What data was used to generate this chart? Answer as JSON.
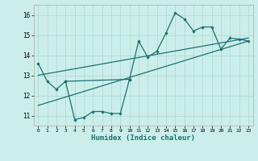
{
  "xlabel": "Humidex (Indice chaleur)",
  "background_color": "#cceeea",
  "grid_color": "#aad8d0",
  "line_color": "#1a7070",
  "xlim": [
    -0.5,
    23.5
  ],
  "ylim": [
    10.5,
    16.5
  ],
  "yticks": [
    11,
    12,
    13,
    14,
    15,
    16
  ],
  "xticks": [
    0,
    1,
    2,
    3,
    4,
    5,
    6,
    7,
    8,
    9,
    10,
    11,
    12,
    13,
    14,
    15,
    16,
    17,
    18,
    19,
    20,
    21,
    22,
    23
  ],
  "series1_x": [
    0,
    1,
    2,
    3,
    10,
    11,
    12,
    13,
    14,
    15,
    16,
    17,
    18,
    19,
    20,
    21,
    22,
    23
  ],
  "series1_y": [
    13.6,
    12.7,
    12.3,
    12.7,
    12.8,
    14.7,
    13.9,
    14.2,
    15.1,
    16.1,
    15.8,
    15.2,
    15.4,
    15.4,
    14.3,
    14.85,
    14.8,
    14.7
  ],
  "series2_x": [
    3,
    4,
    5,
    6,
    7,
    8,
    9,
    10
  ],
  "series2_y": [
    12.7,
    10.8,
    10.9,
    11.2,
    11.2,
    11.1,
    11.1,
    12.8
  ],
  "trendline_x": [
    0,
    23
  ],
  "trendline_y": [
    11.5,
    14.7
  ],
  "trendline2_x": [
    0,
    23
  ],
  "trendline2_y": [
    13.0,
    14.85
  ]
}
